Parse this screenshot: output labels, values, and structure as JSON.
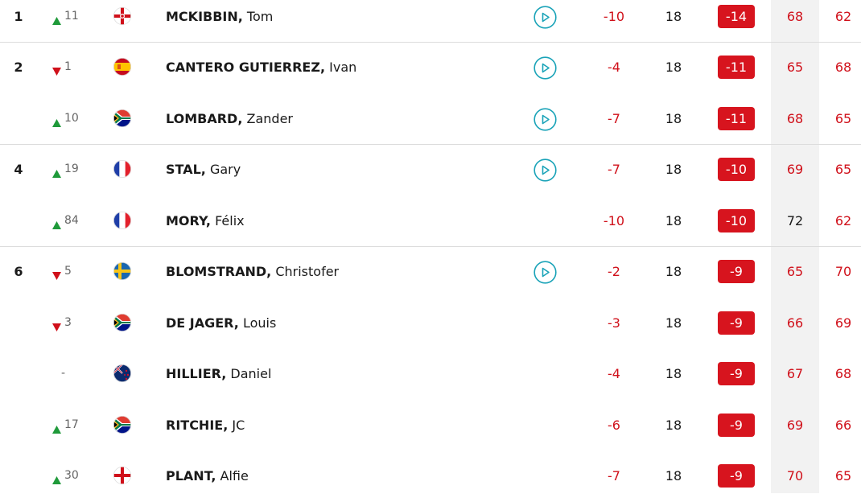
{
  "rows": [
    {
      "pos": 1,
      "move": 11,
      "last": "MCKIBBIN,",
      "first": "Tom",
      "today": -10,
      "thru": 18,
      "total": -14,
      "r1": 68,
      "r2": 62
    },
    {
      "pos": 2,
      "move": 1,
      "last": "CANTERO GUTIERREZ,",
      "first": "Ivan",
      "today": -4,
      "thru": 18,
      "total": -11,
      "r1": 65,
      "r2": 68
    },
    {
      "move": 10,
      "last": "LOMBARD,",
      "first": "Zander",
      "today": -7,
      "thru": 18,
      "total": -11,
      "r1": 68,
      "r2": 65
    },
    {
      "pos": 4,
      "move": 19,
      "last": "STAL,",
      "first": "Gary",
      "today": -7,
      "thru": 18,
      "total": -10,
      "r1": 69,
      "r2": 65
    },
    {
      "move": 84,
      "last": "MORY,",
      "first": "Félix",
      "today": -10,
      "thru": 18,
      "total": -10,
      "r1": 72,
      "r2": 62
    },
    {
      "pos": 6,
      "move": 5,
      "last": "BLOMSTRAND,",
      "first": "Christofer",
      "today": -2,
      "thru": 18,
      "total": -9,
      "r1": 65,
      "r2": 70
    },
    {
      "move": 3,
      "last": "DE JAGER,",
      "first": "Louis",
      "today": -3,
      "thru": 18,
      "total": -9,
      "r1": 66,
      "r2": 69
    },
    {
      "move": "-",
      "last": "HILLIER,",
      "first": "Daniel",
      "today": -4,
      "thru": 18,
      "total": -9,
      "r1": 67,
      "r2": 68
    },
    {
      "move": 17,
      "last": "RITCHIE,",
      "first": "JC",
      "today": -6,
      "thru": 18,
      "total": -9,
      "r1": 69,
      "r2": 66
    },
    {
      "move": 30,
      "last": "PLANT,",
      "first": "Alfie",
      "today": -7,
      "thru": 18,
      "total": -9,
      "r1": 70,
      "r2": 65
    }
  ]
}
